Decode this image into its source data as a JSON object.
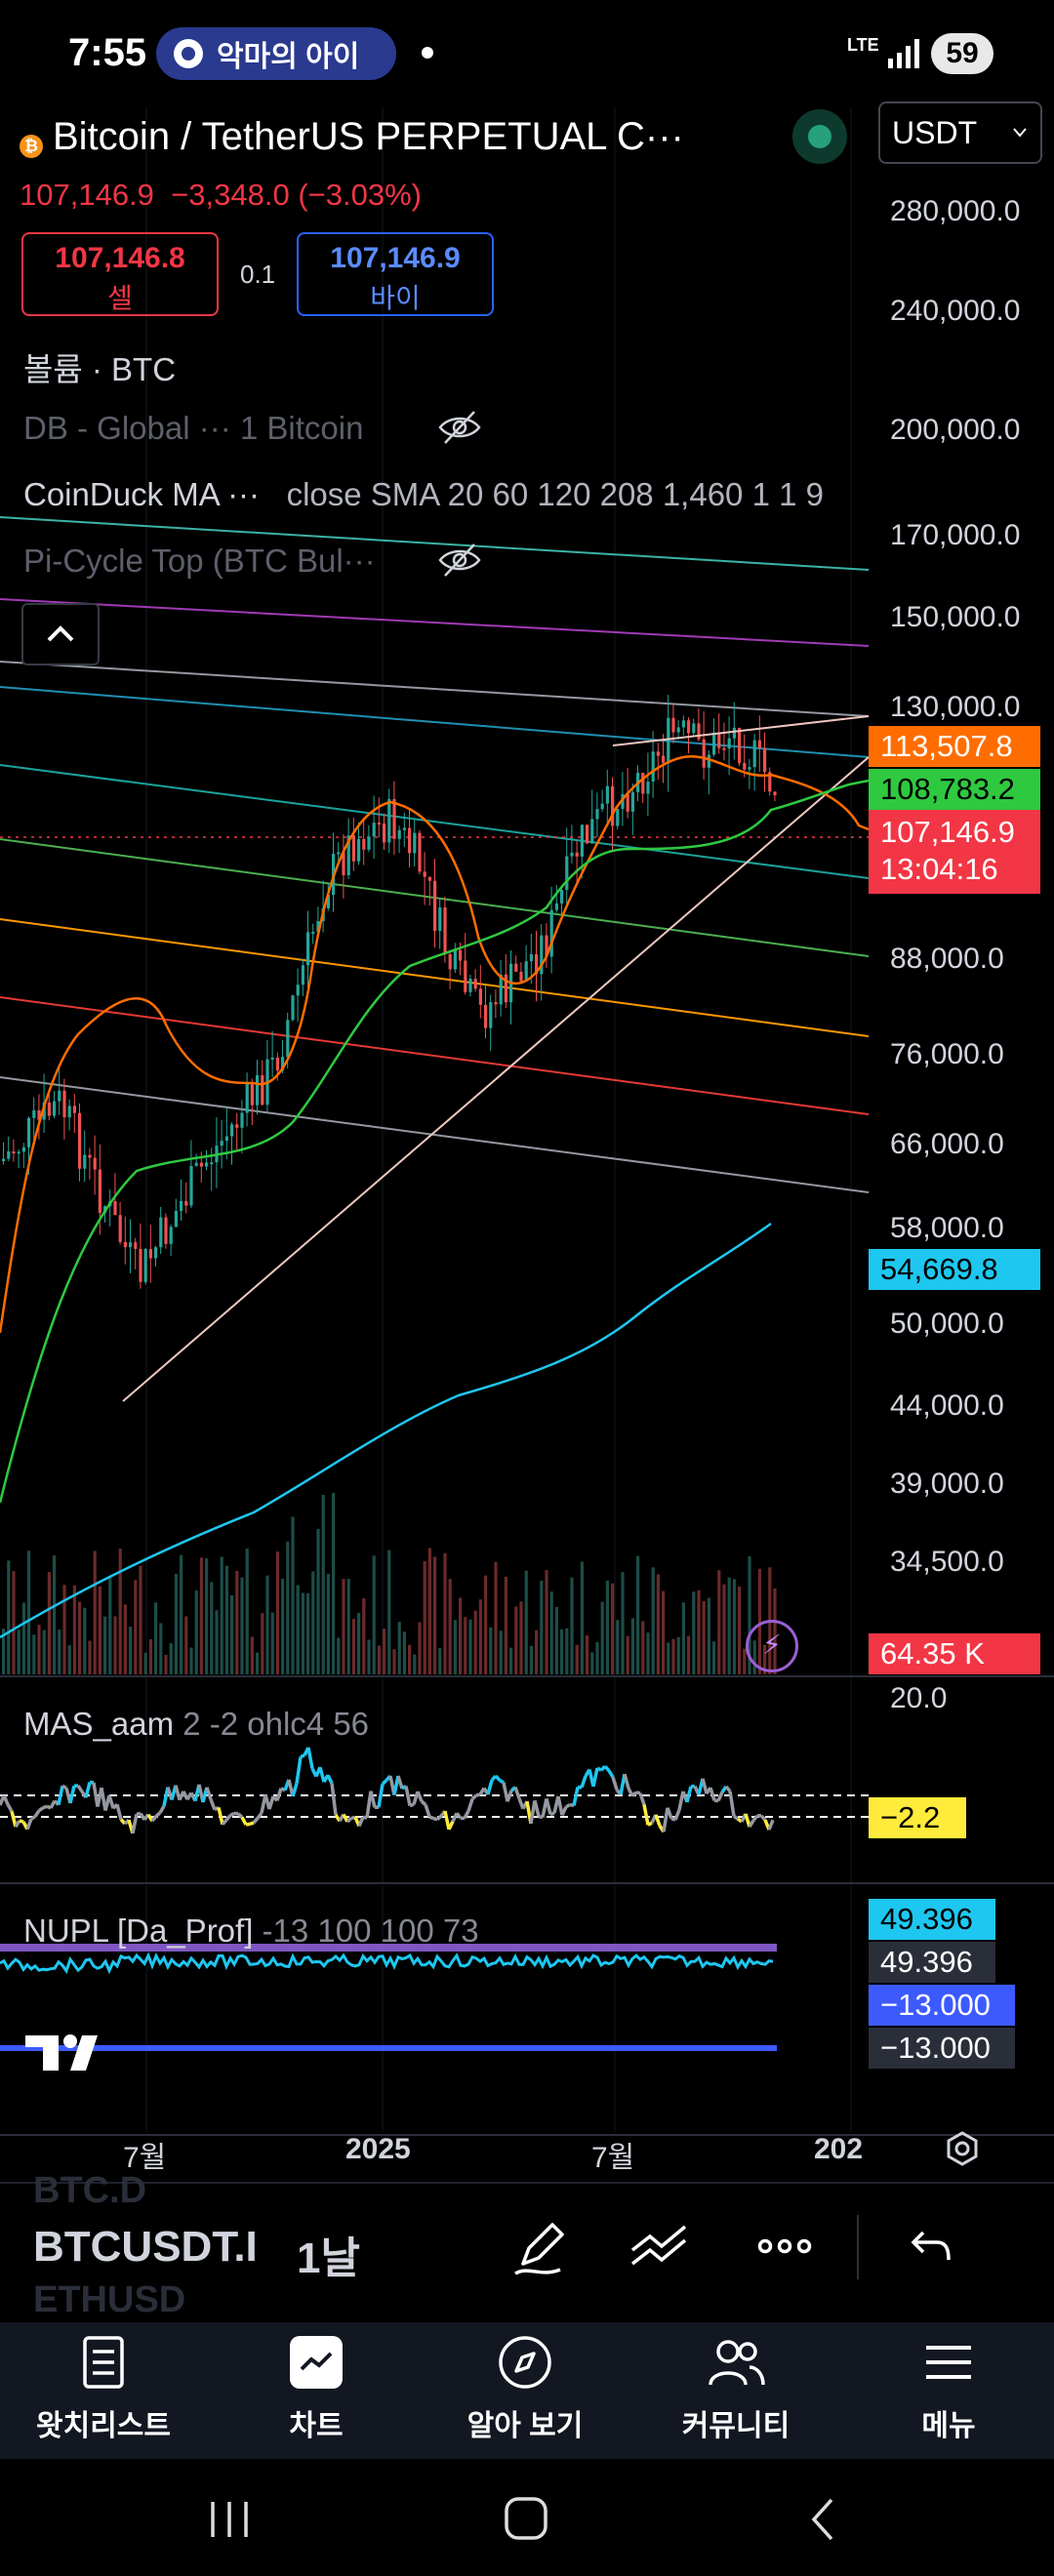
{
  "status_bar": {
    "time": "7:55",
    "notification": "악마의 아이",
    "network": "LTE",
    "battery": "59"
  },
  "header": {
    "symbol_title": "Bitcoin / TetherUS PERPETUAL C···",
    "currency": "USDT",
    "last_price": "107,146.9",
    "change": "−3,348.0",
    "change_pct": "(−3.03%)",
    "sell_price": "107,146.8",
    "sell_label": "셀",
    "buy_price": "107,146.9",
    "buy_label": "바이",
    "spread": "0.1"
  },
  "indicators": {
    "volume": "볼륨 · BTC",
    "db_global": "DB - Global ···  1 Bitcoin",
    "coinduck": "CoinDuck MA ···",
    "coinduck_params": "close SMA 20 60 120 208 1,460 1 1 9",
    "pi_cycle": "Pi-Cycle Top (BTC Bul···"
  },
  "price_scale": {
    "ticks": [
      "280,000.0",
      "240,000.0",
      "200,000.0",
      "170,000.0",
      "150,000.0",
      "130,000.0",
      "88,000.0",
      "76,000.0",
      "66,000.0",
      "58,000.0",
      "50,000.0",
      "44,000.0",
      "39,000.0",
      "34,500.0"
    ],
    "labels": {
      "ma_orange": "113,507.8",
      "ma_green": "108,783.2",
      "last": "107,146.9",
      "countdown": "13:04:16",
      "ma_blue": "54,669.8",
      "volume": "64.35 K"
    },
    "colors": {
      "orange": "#ff6d00",
      "green": "#2fc940",
      "red": "#f23645",
      "cyan": "#1ec7f0",
      "yellow": "#ffeb3b",
      "blue": "#3d5afe",
      "purple": "#7e57c2"
    }
  },
  "mas_pane": {
    "name": "MAS_aam",
    "params": "2 -2 ohlc4 56",
    "scale_top": "20.0",
    "value": "−2.2"
  },
  "nupl_pane": {
    "name": "NUPL [Da_Prof]",
    "params": "-13 100 100 73",
    "value1": "49.396",
    "value2": "49.396",
    "value3": "−13.000",
    "value4": "−13.000"
  },
  "time_axis": {
    "ticks": [
      "7월",
      "2025",
      "7월",
      "202"
    ]
  },
  "toolbar": {
    "ghost_top": "BTC.D",
    "symbol": "BTCUSDT.I",
    "interval": "1날",
    "ghost_bottom": "ETHUSD"
  },
  "bottom_nav": {
    "items": [
      {
        "label": "왓치리스트",
        "icon": "watchlist-icon"
      },
      {
        "label": "차트",
        "icon": "chart-icon"
      },
      {
        "label": "알아 보기",
        "icon": "compass-icon"
      },
      {
        "label": "커뮤니티",
        "icon": "community-icon"
      },
      {
        "label": "메뉴",
        "icon": "menu-icon"
      }
    ]
  }
}
